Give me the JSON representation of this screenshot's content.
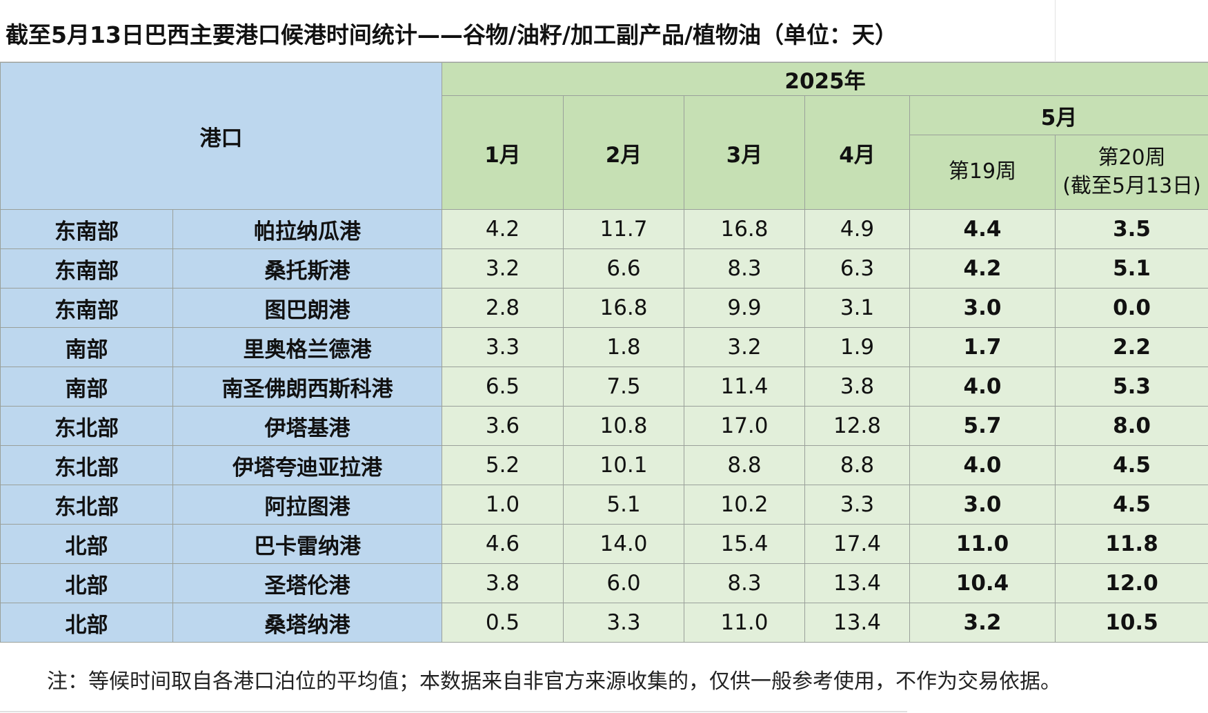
{
  "title": "截至5月13日巴西主要港口候港时间统计——谷物/油籽/加工副产品/植物油（单位：天）",
  "header": {
    "port": "港口",
    "year": "2025年",
    "months": [
      "1月",
      "2月",
      "3月",
      "4月"
    ],
    "may": "5月",
    "week19": "第19周",
    "week20_line1": "第20周",
    "week20_line2": "(截至5月13日)"
  },
  "rows": [
    {
      "region": "东南部",
      "port": "帕拉纳瓜港",
      "m1": "4.2",
      "m2": "11.7",
      "m3": "16.8",
      "m4": "4.9",
      "w19": "4.4",
      "w20": "3.5"
    },
    {
      "region": "东南部",
      "port": "桑托斯港",
      "m1": "3.2",
      "m2": "6.6",
      "m3": "8.3",
      "m4": "6.3",
      "w19": "4.2",
      "w20": "5.1"
    },
    {
      "region": "东南部",
      "port": "图巴朗港",
      "m1": "2.8",
      "m2": "16.8",
      "m3": "9.9",
      "m4": "3.1",
      "w19": "3.0",
      "w20": "0.0"
    },
    {
      "region": "南部",
      "port": "里奥格兰德港",
      "m1": "3.3",
      "m2": "1.8",
      "m3": "3.2",
      "m4": "1.9",
      "w19": "1.7",
      "w20": "2.2"
    },
    {
      "region": "南部",
      "port": "南圣佛朗西斯科港",
      "m1": "6.5",
      "m2": "7.5",
      "m3": "11.4",
      "m4": "3.8",
      "w19": "4.0",
      "w20": "5.3"
    },
    {
      "region": "东北部",
      "port": "伊塔基港",
      "m1": "3.6",
      "m2": "10.8",
      "m3": "17.0",
      "m4": "12.8",
      "w19": "5.7",
      "w20": "8.0"
    },
    {
      "region": "东北部",
      "port": "伊塔夸迪亚拉港",
      "m1": "5.2",
      "m2": "10.1",
      "m3": "8.8",
      "m4": "8.8",
      "w19": "4.0",
      "w20": "4.5"
    },
    {
      "region": "东北部",
      "port": "阿拉图港",
      "m1": "1.0",
      "m2": "5.1",
      "m3": "10.2",
      "m4": "3.3",
      "w19": "3.0",
      "w20": "4.5"
    },
    {
      "region": "北部",
      "port": "巴卡雷纳港",
      "m1": "4.6",
      "m2": "14.0",
      "m3": "15.4",
      "m4": "17.4",
      "w19": "11.0",
      "w20": "11.8"
    },
    {
      "region": "北部",
      "port": "圣塔伦港",
      "m1": "3.8",
      "m2": "6.0",
      "m3": "8.3",
      "m4": "13.4",
      "w19": "10.4",
      "w20": "12.0"
    },
    {
      "region": "北部",
      "port": "桑塔纳港",
      "m1": "0.5",
      "m2": "3.3",
      "m3": "11.0",
      "m4": "13.4",
      "w19": "3.2",
      "w20": "10.5"
    }
  ],
  "note": "注：等候时间取自各港口泊位的平均值；本数据来自非官方来源收集的，仅供一般参考使用，不作为交易依据。",
  "colors": {
    "blue_header": "#bdd7ee",
    "green_header": "#c6e0b4",
    "green_cell": "#e2efda"
  }
}
